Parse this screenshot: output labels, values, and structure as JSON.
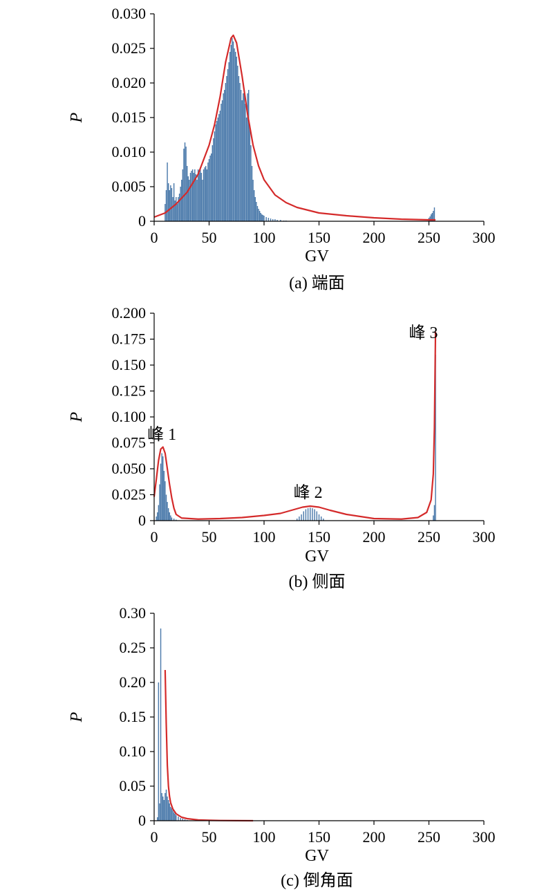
{
  "chart_data": [
    {
      "type": "bar",
      "caption": "(a) 端面",
      "xlabel": "GV",
      "ylabel": "P",
      "xlim": [
        0,
        300
      ],
      "ylim": [
        0,
        0.03
      ],
      "xticks": [
        "0",
        "50",
        "100",
        "150",
        "200",
        "250",
        "300"
      ],
      "yticks": [
        "0",
        "0.005",
        "0.010",
        "0.015",
        "0.020",
        "0.025",
        "0.030"
      ],
      "bar_color": "#4a79aa",
      "curve_color": "#d42a2a",
      "bars": [
        [
          10,
          0.0025
        ],
        [
          11,
          0.0045
        ],
        [
          12,
          0.0085
        ],
        [
          13,
          0.0055
        ],
        [
          14,
          0.0045
        ],
        [
          15,
          0.0052
        ],
        [
          16,
          0.0048
        ],
        [
          17,
          0.0035
        ],
        [
          18,
          0.0055
        ],
        [
          19,
          0.003
        ],
        [
          20,
          0.0035
        ],
        [
          21,
          0.0025
        ],
        [
          22,
          0.0035
        ],
        [
          23,
          0.004
        ],
        [
          24,
          0.005
        ],
        [
          25,
          0.006
        ],
        [
          26,
          0.0075
        ],
        [
          27,
          0.0105
        ],
        [
          28,
          0.0114
        ],
        [
          29,
          0.0108
        ],
        [
          30,
          0.008
        ],
        [
          31,
          0.0065
        ],
        [
          32,
          0.006
        ],
        [
          33,
          0.007
        ],
        [
          34,
          0.0073
        ],
        [
          35,
          0.0075
        ],
        [
          36,
          0.007
        ],
        [
          37,
          0.0075
        ],
        [
          38,
          0.0068
        ],
        [
          39,
          0.006
        ],
        [
          40,
          0.0075
        ],
        [
          41,
          0.007
        ],
        [
          42,
          0.0078
        ],
        [
          43,
          0.007
        ],
        [
          44,
          0.006
        ],
        [
          45,
          0.0075
        ],
        [
          46,
          0.0078
        ],
        [
          47,
          0.008
        ],
        [
          48,
          0.0075
        ],
        [
          49,
          0.0085
        ],
        [
          50,
          0.009
        ],
        [
          51,
          0.0095
        ],
        [
          52,
          0.0098
        ],
        [
          53,
          0.011
        ],
        [
          54,
          0.012
        ],
        [
          55,
          0.013
        ],
        [
          56,
          0.014
        ],
        [
          57,
          0.0145
        ],
        [
          58,
          0.015
        ],
        [
          59,
          0.0155
        ],
        [
          60,
          0.016
        ],
        [
          61,
          0.017
        ],
        [
          62,
          0.0175
        ],
        [
          63,
          0.0185
        ],
        [
          64,
          0.019
        ],
        [
          65,
          0.02
        ],
        [
          66,
          0.021
        ],
        [
          67,
          0.022
        ],
        [
          68,
          0.023
        ],
        [
          69,
          0.0245
        ],
        [
          70,
          0.0255
        ],
        [
          71,
          0.0265
        ],
        [
          72,
          0.026
        ],
        [
          73,
          0.025
        ],
        [
          74,
          0.0245
        ],
        [
          75,
          0.0238
        ],
        [
          76,
          0.0225
        ],
        [
          77,
          0.021
        ],
        [
          78,
          0.02
        ],
        [
          79,
          0.019
        ],
        [
          80,
          0.0175
        ],
        [
          81,
          0.0185
        ],
        [
          82,
          0.019
        ],
        [
          83,
          0.017
        ],
        [
          84,
          0.015
        ],
        [
          85,
          0.0185
        ],
        [
          86,
          0.019
        ],
        [
          87,
          0.014
        ],
        [
          88,
          0.011
        ],
        [
          89,
          0.008
        ],
        [
          90,
          0.006
        ],
        [
          91,
          0.0045
        ],
        [
          92,
          0.0035
        ],
        [
          93,
          0.0028
        ],
        [
          94,
          0.0022
        ],
        [
          95,
          0.0018
        ],
        [
          96,
          0.0015
        ],
        [
          97,
          0.0012
        ],
        [
          98,
          0.001
        ],
        [
          99,
          0.0009
        ],
        [
          100,
          0.0008
        ],
        [
          102,
          0.0006
        ],
        [
          104,
          0.0005
        ],
        [
          106,
          0.0004
        ],
        [
          108,
          0.0003
        ],
        [
          110,
          0.0003
        ],
        [
          112,
          0.0002
        ],
        [
          115,
          0.0002
        ],
        [
          118,
          0.0001
        ],
        [
          120,
          0.0001
        ],
        [
          250,
          0.0005
        ],
        [
          251,
          0.0007
        ],
        [
          252,
          0.001
        ],
        [
          253,
          0.0012
        ],
        [
          254,
          0.0015
        ],
        [
          255,
          0.002
        ]
      ],
      "curve": [
        [
          0,
          0.0006
        ],
        [
          10,
          0.0012
        ],
        [
          20,
          0.0025
        ],
        [
          30,
          0.0042
        ],
        [
          40,
          0.0068
        ],
        [
          50,
          0.011
        ],
        [
          55,
          0.014
        ],
        [
          60,
          0.018
        ],
        [
          65,
          0.023
        ],
        [
          70,
          0.0265
        ],
        [
          72,
          0.0269
        ],
        [
          75,
          0.0258
        ],
        [
          80,
          0.021
        ],
        [
          85,
          0.0155
        ],
        [
          90,
          0.011
        ],
        [
          95,
          0.008
        ],
        [
          100,
          0.006
        ],
        [
          110,
          0.0038
        ],
        [
          120,
          0.0027
        ],
        [
          130,
          0.002
        ],
        [
          150,
          0.0012
        ],
        [
          175,
          0.0008
        ],
        [
          200,
          0.0005
        ],
        [
          225,
          0.0003
        ],
        [
          250,
          0.0002
        ],
        [
          256,
          0.0002
        ]
      ],
      "annotations": []
    },
    {
      "type": "bar",
      "caption": "(b) 侧面",
      "xlabel": "GV",
      "ylabel": "P",
      "xlim": [
        0,
        300
      ],
      "ylim": [
        0,
        0.2
      ],
      "xticks": [
        "0",
        "50",
        "100",
        "150",
        "200",
        "250",
        "300"
      ],
      "yticks": [
        "0",
        "0.025",
        "0.050",
        "0.075",
        "0.100",
        "0.125",
        "0.150",
        "0.175",
        "0.200"
      ],
      "bar_color": "#4a79aa",
      "curve_color": "#d42a2a",
      "bars": [
        [
          2,
          0.004
        ],
        [
          3,
          0.008
        ],
        [
          4,
          0.015
        ],
        [
          5,
          0.035
        ],
        [
          6,
          0.055
        ],
        [
          7,
          0.065
        ],
        [
          8,
          0.062
        ],
        [
          9,
          0.048
        ],
        [
          10,
          0.038
        ],
        [
          11,
          0.025
        ],
        [
          12,
          0.018
        ],
        [
          13,
          0.012
        ],
        [
          14,
          0.008
        ],
        [
          15,
          0.005
        ],
        [
          16,
          0.003
        ],
        [
          18,
          0.002
        ],
        [
          20,
          0.001
        ],
        [
          130,
          0.002
        ],
        [
          132,
          0.004
        ],
        [
          134,
          0.006
        ],
        [
          136,
          0.009
        ],
        [
          138,
          0.011
        ],
        [
          140,
          0.012
        ],
        [
          142,
          0.0125
        ],
        [
          144,
          0.012
        ],
        [
          146,
          0.011
        ],
        [
          148,
          0.009
        ],
        [
          150,
          0.006
        ],
        [
          152,
          0.004
        ],
        [
          154,
          0.002
        ],
        [
          254,
          0.005
        ],
        [
          255,
          0.015
        ],
        [
          256,
          0.16
        ]
      ],
      "curve": [
        [
          0,
          0.023
        ],
        [
          2,
          0.04
        ],
        [
          4,
          0.058
        ],
        [
          6,
          0.069
        ],
        [
          8,
          0.071
        ],
        [
          10,
          0.065
        ],
        [
          12,
          0.05
        ],
        [
          14,
          0.035
        ],
        [
          16,
          0.022
        ],
        [
          18,
          0.012
        ],
        [
          20,
          0.006
        ],
        [
          25,
          0.0025
        ],
        [
          40,
          0.0015
        ],
        [
          60,
          0.002
        ],
        [
          80,
          0.003
        ],
        [
          100,
          0.005
        ],
        [
          115,
          0.007
        ],
        [
          125,
          0.01
        ],
        [
          135,
          0.013
        ],
        [
          142,
          0.014
        ],
        [
          150,
          0.013
        ],
        [
          160,
          0.01
        ],
        [
          175,
          0.006
        ],
        [
          200,
          0.002
        ],
        [
          225,
          0.0015
        ],
        [
          240,
          0.003
        ],
        [
          248,
          0.008
        ],
        [
          252,
          0.02
        ],
        [
          254,
          0.045
        ],
        [
          255,
          0.09
        ],
        [
          256,
          0.182
        ]
      ],
      "annotations": [
        {
          "text": "峰 1",
          "x": 7,
          "y": 0.078
        },
        {
          "text": "峰 2",
          "x": 140,
          "y": 0.022
        },
        {
          "text": "峰 3",
          "x": 245,
          "y": 0.176
        }
      ]
    },
    {
      "type": "bar",
      "caption": "(c) 倒角面",
      "xlabel": "GV",
      "ylabel": "P",
      "xlim": [
        0,
        300
      ],
      "ylim": [
        0,
        0.3
      ],
      "xticks": [
        "0",
        "50",
        "100",
        "150",
        "200",
        "250",
        "300"
      ],
      "yticks": [
        "0",
        "0.05",
        "0.10",
        "0.15",
        "0.20",
        "0.25",
        "0.30"
      ],
      "bar_color": "#4a79aa",
      "curve_color": "#d42a2a",
      "bars": [
        [
          3,
          0.005
        ],
        [
          4,
          0.2
        ],
        [
          5,
          0.025
        ],
        [
          6,
          0.278
        ],
        [
          7,
          0.04
        ],
        [
          8,
          0.035
        ],
        [
          9,
          0.03
        ],
        [
          10,
          0.04
        ],
        [
          11,
          0.045
        ],
        [
          12,
          0.035
        ],
        [
          13,
          0.03
        ],
        [
          14,
          0.025
        ],
        [
          15,
          0.02
        ],
        [
          16,
          0.018
        ],
        [
          17,
          0.015
        ],
        [
          18,
          0.012
        ],
        [
          19,
          0.01
        ],
        [
          20,
          0.008
        ],
        [
          22,
          0.006
        ],
        [
          24,
          0.004
        ],
        [
          26,
          0.003
        ],
        [
          28,
          0.002
        ],
        [
          30,
          0.001
        ]
      ],
      "curve": [
        [
          10,
          0.218
        ],
        [
          11,
          0.14
        ],
        [
          12,
          0.08
        ],
        [
          13,
          0.05
        ],
        [
          14,
          0.035
        ],
        [
          15,
          0.026
        ],
        [
          17,
          0.017
        ],
        [
          20,
          0.01
        ],
        [
          25,
          0.005
        ],
        [
          30,
          0.003
        ],
        [
          40,
          0.0012
        ],
        [
          50,
          0.0006
        ],
        [
          60,
          0.0003
        ],
        [
          75,
          0.0001
        ],
        [
          90,
          0.0
        ]
      ],
      "annotations": []
    }
  ]
}
